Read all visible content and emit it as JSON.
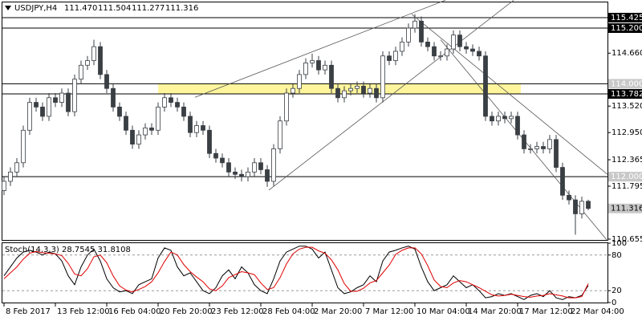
{
  "chart_data": {
    "type": "candlestick",
    "header": {
      "symbol": "USDJPY,H4",
      "ohlc": [
        "111.470",
        "111.504",
        "111.277",
        "111.316"
      ]
    },
    "categories": [
      "8 Feb 2017",
      null,
      null,
      null,
      null,
      null,
      null,
      null,
      "13 Feb 12:00",
      null,
      null,
      null,
      null,
      null,
      null,
      null,
      "16 Feb 04:00",
      null,
      null,
      null,
      null,
      null,
      null,
      null,
      "20 Feb 20:00",
      null,
      null,
      null,
      null,
      null,
      null,
      null,
      "23 Feb 12:00",
      null,
      null,
      null,
      null,
      null,
      null,
      null,
      "28 Feb 04:00",
      null,
      null,
      null,
      null,
      null,
      null,
      null,
      "2 Mar 20:00",
      null,
      null,
      null,
      null,
      null,
      null,
      null,
      "7 Mar 12:00",
      null,
      null,
      null,
      null,
      null,
      null,
      null,
      "10 Mar 04:00",
      null,
      null,
      null,
      null,
      null,
      null,
      null,
      "14 Mar 20:00",
      null,
      null,
      null,
      null,
      null,
      null,
      null,
      "17 Mar 12:00",
      null,
      null,
      null,
      null,
      null,
      null,
      null,
      "22 Mar 04:00",
      null,
      null,
      null
    ],
    "open": [
      111.7,
      111.9,
      112.1,
      112.3,
      113.0,
      113.6,
      113.5,
      113.3,
      113.7,
      113.6,
      113.8,
      113.4,
      114.1,
      114.4,
      114.5,
      114.8,
      114.2,
      113.9,
      113.5,
      113.3,
      113.0,
      112.7,
      112.9,
      113.05,
      113.0,
      113.5,
      113.7,
      113.6,
      113.5,
      113.3,
      112.95,
      113.1,
      113.0,
      112.5,
      112.4,
      112.3,
      112.1,
      112.05,
      112.0,
      112.1,
      112.3,
      112.15,
      111.9,
      112.6,
      113.2,
      113.8,
      113.9,
      114.2,
      114.45,
      114.5,
      114.3,
      114.4,
      113.9,
      113.7,
      113.85,
      113.9,
      113.95,
      113.8,
      113.9,
      113.7,
      114.6,
      114.5,
      114.7,
      114.9,
      115.2,
      115.35,
      114.9,
      114.8,
      114.6,
      114.6,
      114.75,
      115.05,
      114.8,
      114.75,
      114.7,
      114.6,
      113.3,
      113.2,
      113.3,
      113.25,
      113.3,
      112.9,
      112.6,
      112.6,
      112.65,
      112.6,
      112.8,
      112.2,
      111.6,
      111.5,
      111.2,
      111.47
    ],
    "high": [
      112.0,
      112.2,
      112.4,
      113.1,
      113.7,
      113.7,
      113.6,
      113.8,
      113.8,
      113.9,
      113.9,
      114.2,
      114.5,
      114.6,
      114.95,
      114.9,
      114.3,
      114.0,
      113.6,
      113.4,
      113.1,
      113.0,
      113.15,
      113.15,
      113.6,
      113.8,
      113.8,
      113.7,
      113.6,
      113.4,
      113.2,
      113.2,
      113.1,
      112.6,
      112.5,
      112.4,
      112.2,
      112.15,
      112.2,
      112.4,
      112.4,
      112.25,
      112.7,
      113.3,
      113.9,
      114.0,
      114.3,
      114.55,
      114.65,
      114.6,
      114.5,
      114.5,
      114.0,
      113.95,
      114.0,
      114.05,
      114.05,
      114.0,
      114.0,
      114.7,
      114.7,
      114.8,
      115.0,
      115.3,
      115.5,
      115.45,
      115.0,
      114.9,
      114.7,
      114.85,
      115.15,
      115.15,
      114.9,
      114.85,
      114.8,
      114.7,
      113.4,
      113.4,
      113.4,
      113.4,
      113.4,
      113.0,
      112.7,
      112.75,
      112.75,
      112.9,
      112.9,
      112.3,
      111.7,
      111.6,
      111.57,
      111.504
    ],
    "low": [
      111.6,
      111.8,
      112.0,
      112.2,
      112.9,
      113.4,
      113.2,
      113.2,
      113.5,
      113.5,
      113.3,
      113.3,
      114.0,
      114.3,
      114.4,
      114.1,
      113.8,
      113.4,
      113.2,
      112.9,
      112.6,
      112.6,
      112.8,
      112.9,
      112.9,
      113.4,
      113.5,
      113.4,
      113.2,
      112.85,
      112.85,
      112.9,
      112.4,
      112.3,
      112.2,
      112.0,
      111.95,
      111.9,
      111.9,
      112.0,
      112.05,
      111.78,
      111.8,
      112.5,
      113.1,
      113.7,
      113.8,
      114.1,
      114.35,
      114.2,
      114.2,
      113.8,
      113.6,
      113.6,
      113.75,
      113.8,
      113.7,
      113.7,
      113.6,
      113.6,
      114.4,
      114.4,
      114.6,
      114.8,
      115.1,
      114.8,
      114.7,
      114.5,
      114.5,
      114.5,
      114.65,
      114.7,
      114.65,
      114.6,
      114.5,
      113.2,
      113.1,
      113.1,
      113.15,
      113.15,
      112.8,
      112.5,
      112.5,
      112.5,
      112.5,
      112.5,
      112.1,
      111.5,
      111.4,
      110.75,
      111.1,
      111.277
    ],
    "close": [
      111.9,
      112.1,
      112.3,
      113.0,
      113.6,
      113.5,
      113.3,
      113.7,
      113.6,
      113.8,
      113.4,
      114.1,
      114.4,
      114.5,
      114.8,
      114.2,
      113.9,
      113.5,
      113.3,
      113.0,
      112.7,
      112.9,
      113.05,
      113.0,
      113.5,
      113.7,
      113.6,
      113.5,
      113.3,
      112.95,
      113.1,
      113.0,
      112.5,
      112.4,
      112.3,
      112.1,
      112.05,
      112.0,
      112.1,
      112.3,
      112.15,
      111.9,
      112.6,
      113.2,
      113.8,
      113.9,
      114.2,
      114.45,
      114.5,
      114.3,
      114.4,
      113.9,
      113.7,
      113.85,
      113.9,
      113.95,
      113.8,
      113.9,
      113.7,
      114.6,
      114.5,
      114.7,
      114.9,
      115.2,
      115.35,
      114.9,
      114.8,
      114.6,
      114.6,
      114.75,
      115.05,
      114.8,
      114.75,
      114.7,
      114.6,
      113.3,
      113.2,
      113.3,
      113.25,
      113.3,
      112.9,
      112.6,
      112.6,
      112.65,
      112.6,
      112.8,
      112.2,
      111.6,
      111.5,
      111.2,
      111.47,
      111.316
    ],
    "bull_color": "#ffffff",
    "bear_color": "#3a3f44",
    "outline_color": "#3a3f44",
    "ylim": [
      110.62,
      115.805
    ],
    "yticks": [
      {
        "value": 114.66,
        "label": "114.660"
      },
      {
        "value": 113.52,
        "label": "113.520"
      },
      {
        "value": 112.95,
        "label": "112.950"
      },
      112.365,
      111.795,
      110.655
    ],
    "levels": [
      {
        "value": 115.425,
        "label": "115.425",
        "line": true,
        "label_bg": "#000000",
        "label_color": "#ffffff"
      },
      {
        "value": 115.2,
        "label": "115.200",
        "line": true,
        "label_bg": "#000000",
        "label_color": "#ffffff"
      },
      {
        "value": 114.0,
        "label": "114.000",
        "line": true,
        "label_bg": "#c8c8c8",
        "label_color": "#ffffff"
      },
      {
        "value": 113.782,
        "label": "113.782",
        "line": true,
        "label_bg": "#000000",
        "label_color": "#ffffff"
      },
      {
        "value": 112.0,
        "label": "112.000",
        "line": true,
        "label_bg": "#c8c8c8",
        "label_color": "#ffffff"
      },
      {
        "value": 111.316,
        "label": "111.316",
        "line": false,
        "label_bg": "#c8c8c8",
        "label_color": "#000000"
      }
    ],
    "zone": {
      "from": 113.782,
      "to": 114.0,
      "x": [
        24,
        80.5
      ],
      "color": "#fff59d"
    },
    "trendlines": [
      {
        "x": [
          29.75,
          68.75
        ],
        "y": [
          113.71,
          115.8
        ]
      },
      {
        "x": [
          41.25,
          79.4
        ],
        "y": [
          111.71,
          115.8
        ]
      },
      {
        "x": [
          63.5,
          94
        ],
        "y": [
          115.5,
          112.05
        ]
      },
      {
        "x": [
          68,
          94
        ],
        "y": [
          114.95,
          110.62
        ]
      }
    ],
    "indicator": {
      "type": "line",
      "title": "Stoch(14,3,3) 28.7545 31.8108",
      "ylim": [
        0,
        100
      ],
      "yticks": [
        0,
        20,
        80,
        100
      ],
      "levels": [
        20,
        80
      ],
      "series": [
        {
          "color": "#000000",
          "values": [
            45,
            60,
            75,
            85,
            88,
            85,
            80,
            85,
            82,
            70,
            45,
            30,
            60,
            80,
            90,
            70,
            40,
            25,
            18,
            20,
            15,
            30,
            35,
            40,
            75,
            92,
            88,
            60,
            45,
            50,
            35,
            20,
            15,
            25,
            45,
            55,
            40,
            60,
            50,
            30,
            20,
            15,
            40,
            70,
            85,
            90,
            95,
            95,
            90,
            75,
            85,
            55,
            25,
            15,
            18,
            25,
            30,
            45,
            35,
            70,
            85,
            88,
            92,
            95,
            90,
            60,
            35,
            20,
            25,
            30,
            45,
            35,
            25,
            30,
            20,
            8,
            10,
            15,
            12,
            15,
            10,
            5,
            12,
            15,
            10,
            20,
            8,
            5,
            10,
            8,
            12,
            28.7545
          ]
        },
        {
          "color": "#e00000",
          "values": [
            40,
            50,
            60,
            73,
            83,
            86,
            84,
            83,
            82,
            79,
            66,
            48,
            45,
            57,
            77,
            80,
            67,
            45,
            28,
            21,
            18,
            22,
            27,
            35,
            50,
            69,
            85,
            80,
            64,
            52,
            43,
            35,
            23,
            20,
            28,
            42,
            47,
            52,
            50,
            47,
            33,
            22,
            25,
            42,
            65,
            82,
            90,
            93,
            93,
            87,
            83,
            72,
            55,
            32,
            19,
            19,
            24,
            33,
            37,
            50,
            63,
            81,
            88,
            92,
            92,
            82,
            62,
            38,
            27,
            25,
            33,
            37,
            35,
            30,
            25,
            19,
            13,
            11,
            12,
            14,
            12,
            10,
            9,
            11,
            12,
            15,
            13,
            11,
            8,
            8,
            10,
            31.8108
          ]
        }
      ]
    }
  }
}
